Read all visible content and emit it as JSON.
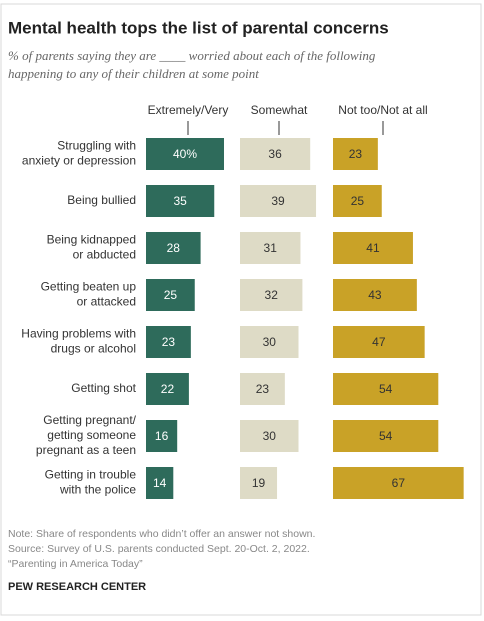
{
  "chart_data": {
    "type": "bar",
    "title": "Mental health tops the list of parental concerns",
    "subtitle": [
      "% of parents saying they are ____ worried about each of the following",
      "happening to any of their children at some point"
    ],
    "categories": [
      "Struggling with\nanxiety or depression",
      "Being bullied",
      "Being kidnapped\nor abducted",
      "Getting beaten up\nor attacked",
      "Having problems with\ndrugs or alcohol",
      "Getting shot",
      "Getting pregnant/\ngetting someone\npregnant as a teen",
      "Getting in trouble\nwith the police"
    ],
    "series": [
      {
        "name": "Extremely/Very",
        "color": "#2e6b5b",
        "values": [
          40,
          35,
          28,
          25,
          23,
          22,
          16,
          14
        ],
        "value_labels": [
          "40%",
          "35",
          "28",
          "25",
          "23",
          "22",
          "16",
          "14"
        ]
      },
      {
        "name": "Somewhat",
        "color": "#dedbc6",
        "values": [
          36,
          39,
          31,
          32,
          30,
          23,
          30,
          19
        ]
      },
      {
        "name": "Not too/Not at all",
        "color": "#c9a227",
        "values": [
          23,
          25,
          41,
          43,
          47,
          54,
          54,
          67
        ]
      }
    ],
    "notes": [
      "Note: Share of respondents who didn’t offer an answer not shown.",
      "Source: Survey of U.S. parents conducted Sept. 20-Oct. 2, 2022.",
      "“Parenting in America Today”"
    ],
    "source": "PEW RESEARCH CENTER"
  }
}
